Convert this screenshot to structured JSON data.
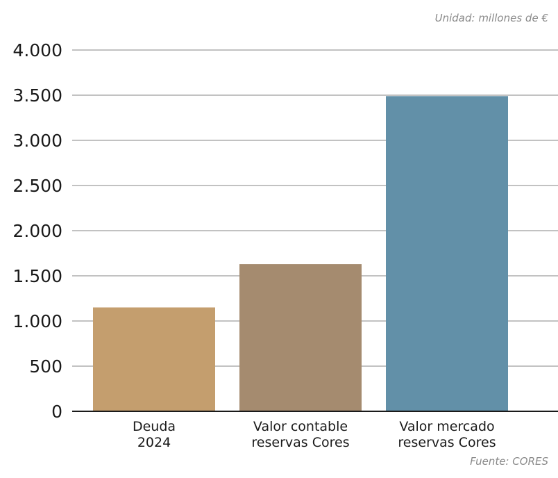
{
  "unit_note": "Unidad: millones de €",
  "source_note": "Fuente: CORES",
  "chart_data": {
    "type": "bar",
    "categories": [
      [
        "Deuda",
        "2024"
      ],
      [
        "Valor contable",
        "reservas Cores"
      ],
      [
        "Valor mercado",
        "reservas Cores"
      ]
    ],
    "values": [
      1150,
      1630,
      3490
    ],
    "bar_colors": [
      "#c49e6e",
      "#a58b6f",
      "#6290a8"
    ],
    "ylim": [
      0,
      4000
    ],
    "yticks": [
      0,
      500,
      1000,
      1500,
      2000,
      2500,
      3000,
      3500,
      4000
    ],
    "ytick_labels": [
      "0",
      "500",
      "1.000",
      "1.500",
      "2.000",
      "2.500",
      "3.000",
      "3.500",
      "4.000"
    ],
    "grid": true,
    "title": "",
    "xlabel": "",
    "ylabel": ""
  }
}
